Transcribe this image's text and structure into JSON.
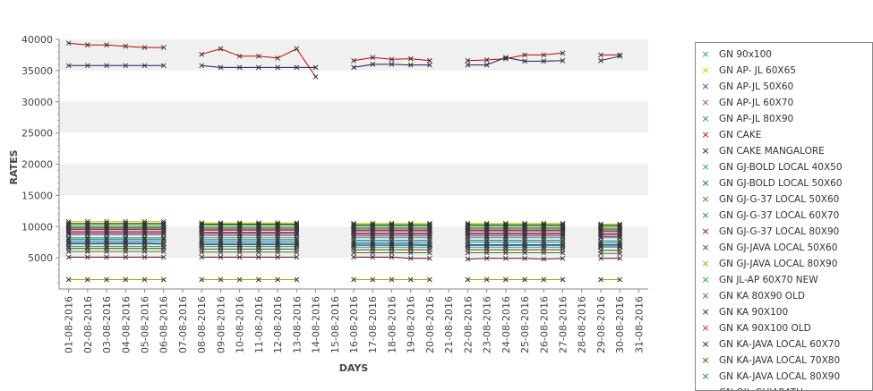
{
  "chart_data": {
    "type": "line",
    "title": "",
    "xlabel": "DAYS",
    "ylabel": "RATES",
    "ylim": [
      0,
      40000
    ],
    "y_ticks": [
      5000,
      10000,
      15000,
      20000,
      25000,
      30000,
      35000,
      40000
    ],
    "grid": "alternating horizontal bands",
    "legend_position": "right",
    "categories": [
      "01-08-2016",
      "02-08-2016",
      "03-08-2016",
      "04-08-2016",
      "05-08-2016",
      "06-08-2016",
      "07-08-2016",
      "08-08-2016",
      "09-08-2016",
      "10-08-2016",
      "11-08-2016",
      "12-08-2016",
      "13-08-2016",
      "14-08-2016",
      "15-08-2016",
      "16-08-2016",
      "17-08-2016",
      "18-08-2016",
      "19-08-2016",
      "20-08-2016",
      "21-08-2016",
      "22-08-2016",
      "23-08-2016",
      "24-08-2016",
      "25-08-2016",
      "26-08-2016",
      "27-08-2016",
      "28-08-2016",
      "29-08-2016",
      "30-08-2016",
      "31-08-2016"
    ],
    "series": [
      {
        "name": "GN 90x100",
        "color": "#2a9d8f",
        "values": [
          8200,
          8200,
          8200,
          8200,
          8200,
          8200,
          null,
          8200,
          8200,
          8200,
          8200,
          8200,
          8200,
          null,
          null,
          8200,
          8200,
          8200,
          8200,
          8200,
          null,
          8200,
          8200,
          8200,
          8200,
          8200,
          8200,
          null,
          8200,
          8200,
          null
        ]
      },
      {
        "name": "GN AP- JL 60X65",
        "color": "#c9c900",
        "values": [
          10800,
          10800,
          10800,
          10800,
          10800,
          10800,
          null,
          10600,
          10600,
          10600,
          10600,
          10600,
          10600,
          null,
          null,
          10500,
          10500,
          10500,
          10500,
          10500,
          null,
          10500,
          10500,
          10500,
          10500,
          10500,
          10500,
          null,
          10400,
          10400,
          null
        ]
      },
      {
        "name": "GN AP-JL 50X60",
        "color": "#1f4fa0",
        "values": [
          7400,
          7400,
          7400,
          7400,
          7400,
          7300,
          null,
          7300,
          7300,
          7300,
          7300,
          7300,
          7300,
          null,
          null,
          7200,
          7200,
          7200,
          7200,
          7100,
          null,
          7100,
          7100,
          7100,
          7100,
          7100,
          7100,
          null,
          7100,
          7100,
          null
        ]
      },
      {
        "name": "GN AP-JL 60X70",
        "color": "#a0522d",
        "values": [
          9500,
          9500,
          9500,
          9500,
          9500,
          9500,
          null,
          9400,
          9400,
          9400,
          9400,
          9400,
          9400,
          null,
          null,
          9300,
          9300,
          9300,
          9300,
          9300,
          null,
          9300,
          9300,
          9300,
          9300,
          9300,
          9300,
          null,
          9200,
          9200,
          null
        ]
      },
      {
        "name": "GN AP-JL 80X90",
        "color": "#1f77b4",
        "values": [
          7700,
          7700,
          7700,
          7700,
          7700,
          7700,
          null,
          7600,
          7600,
          7600,
          7600,
          7600,
          7600,
          null,
          null,
          7500,
          7500,
          7500,
          7500,
          7500,
          null,
          7500,
          7500,
          7500,
          7500,
          7500,
          7500,
          null,
          7400,
          7400,
          null
        ]
      },
      {
        "name": "GN CAKE",
        "color": "#cc0000",
        "values": [
          39400,
          39100,
          39100,
          38900,
          38700,
          38700,
          null,
          37600,
          38500,
          37300,
          37300,
          37000,
          38500,
          34000,
          null,
          36600,
          37100,
          36800,
          36900,
          36600,
          null,
          36600,
          36700,
          36900,
          37500,
          37500,
          37800,
          null,
          37500,
          37500,
          null
        ]
      },
      {
        "name": "GN CAKE MANGALORE",
        "color": "#1a1a5e",
        "values": [
          35800,
          35800,
          35800,
          35800,
          35800,
          35800,
          null,
          35800,
          35500,
          35500,
          35500,
          35500,
          35500,
          35500,
          null,
          35500,
          36000,
          36000,
          35900,
          35900,
          null,
          35900,
          35900,
          37100,
          36500,
          36500,
          36600,
          null,
          36600,
          37300,
          null
        ]
      },
      {
        "name": "GN GJ-BOLD LOCAL 40X50",
        "color": "#2a9d8f",
        "values": [
          6800,
          6800,
          6800,
          6800,
          6800,
          6800,
          null,
          6800,
          6800,
          6800,
          6800,
          6800,
          6800,
          null,
          null,
          6700,
          6700,
          6700,
          6700,
          6700,
          null,
          6700,
          6700,
          6700,
          6700,
          6700,
          6700,
          null,
          6700,
          6700,
          null
        ]
      },
      {
        "name": "GN GJ-BOLD LOCAL 50X60",
        "color": "#0b6e4f",
        "values": [
          7200,
          7200,
          7200,
          7200,
          7200,
          7200,
          null,
          7100,
          7100,
          7100,
          7100,
          7100,
          7100,
          null,
          null,
          7000,
          7000,
          7000,
          7000,
          7000,
          null,
          7000,
          7000,
          7000,
          7000,
          7000,
          7000,
          null,
          6900,
          6900,
          null
        ]
      },
      {
        "name": "GN GJ-G-37 LOCAL 50X60",
        "color": "#4a7d1e",
        "values": [
          9800,
          9800,
          9800,
          9800,
          9800,
          9800,
          null,
          9700,
          9700,
          9700,
          9700,
          9700,
          9700,
          null,
          null,
          9600,
          9600,
          9600,
          9600,
          9600,
          null,
          9600,
          9600,
          9600,
          9600,
          9600,
          9600,
          null,
          9500,
          9500,
          null
        ]
      },
      {
        "name": "GN GJ-G-37 LOCAL 60X70",
        "color": "#1b8a5a",
        "values": [
          10000,
          10000,
          10000,
          10000,
          10000,
          10000,
          null,
          9900,
          9900,
          9900,
          9900,
          9900,
          9900,
          null,
          null,
          9800,
          9800,
          9800,
          9800,
          9800,
          null,
          9800,
          9800,
          9800,
          9800,
          9800,
          9800,
          null,
          9700,
          9700,
          null
        ]
      },
      {
        "name": "GN GJ-G-37 LOCAL 80X90",
        "color": "#7a1010",
        "values": [
          9000,
          9000,
          9000,
          9000,
          9000,
          9000,
          null,
          8900,
          8900,
          8900,
          8900,
          8900,
          8900,
          null,
          null,
          8800,
          8800,
          8800,
          8800,
          8800,
          null,
          8800,
          8800,
          8800,
          8800,
          8800,
          8800,
          null,
          8700,
          8700,
          null
        ]
      },
      {
        "name": "GN GJ-JAVA LOCAL 50X60",
        "color": "#6b2d5c",
        "values": [
          8700,
          8700,
          8700,
          8700,
          8700,
          8700,
          null,
          8600,
          8600,
          8600,
          8600,
          8600,
          8600,
          null,
          null,
          8500,
          8500,
          8500,
          8500,
          8500,
          null,
          8500,
          8500,
          8500,
          8500,
          8500,
          8500,
          null,
          8400,
          8400,
          null
        ]
      },
      {
        "name": "GN GJ-JAVA LOCAL 80X90",
        "color": "#b8a000",
        "values": [
          1500,
          1500,
          1500,
          1500,
          1500,
          1500,
          null,
          1500,
          1500,
          1500,
          1500,
          1500,
          1500,
          null,
          null,
          1500,
          1500,
          1500,
          1500,
          1500,
          null,
          1500,
          1500,
          1500,
          1500,
          1500,
          1500,
          null,
          1500,
          1500,
          null
        ]
      },
      {
        "name": "GN JL-AP 60X70 NEW",
        "color": "#22aa22",
        "values": [
          10300,
          10300,
          10300,
          10300,
          10300,
          10300,
          null,
          10200,
          10200,
          10200,
          10200,
          10200,
          10200,
          null,
          null,
          10100,
          10100,
          10100,
          10100,
          10100,
          null,
          10100,
          10100,
          10100,
          10100,
          10100,
          10100,
          null,
          10000,
          10000,
          null
        ]
      },
      {
        "name": "GN KA 80X90 OLD",
        "color": "#7b3fb0",
        "values": [
          9200,
          9200,
          9200,
          9200,
          9200,
          9200,
          null,
          9100,
          9100,
          9100,
          9100,
          9100,
          9100,
          null,
          null,
          9000,
          9000,
          9000,
          9000,
          9000,
          null,
          9000,
          9000,
          9000,
          9000,
          9000,
          9000,
          null,
          8900,
          8900,
          null
        ]
      },
      {
        "name": "GN KA 90X100",
        "color": "#3d2b00",
        "values": [
          10500,
          10500,
          10500,
          10500,
          10500,
          10500,
          null,
          10400,
          10400,
          10400,
          10400,
          10400,
          10400,
          null,
          null,
          10300,
          10300,
          10300,
          10300,
          10300,
          null,
          10300,
          10300,
          10300,
          10300,
          10300,
          10300,
          null,
          10200,
          10200,
          null
        ]
      },
      {
        "name": "GN KA 90X100 OLD",
        "color": "#c2185b",
        "values": [
          9600,
          9600,
          9600,
          9600,
          9600,
          9600,
          null,
          9500,
          9500,
          9500,
          9500,
          9500,
          9500,
          null,
          null,
          9400,
          9400,
          9400,
          9400,
          9400,
          null,
          9400,
          9400,
          9400,
          9400,
          9400,
          9400,
          null,
          9300,
          9300,
          null
        ]
      },
      {
        "name": "GN KA-JAVA LOCAL 60X70",
        "color": "#5c0a0a",
        "values": [
          5100,
          5100,
          5100,
          5100,
          5100,
          5100,
          null,
          5100,
          5100,
          5100,
          5100,
          5100,
          5100,
          null,
          null,
          5100,
          5100,
          5100,
          4900,
          4900,
          null,
          4800,
          4900,
          4900,
          4900,
          4800,
          4900,
          null,
          4900,
          4900,
          null
        ]
      },
      {
        "name": "GN KA-JAVA LOCAL 70X80",
        "color": "#4d4d00",
        "values": [
          6500,
          6500,
          6500,
          6500,
          6500,
          6500,
          null,
          6400,
          6400,
          6400,
          6400,
          6400,
          6400,
          null,
          null,
          6300,
          6300,
          6300,
          6300,
          6300,
          null,
          6300,
          6300,
          6300,
          6300,
          6300,
          6300,
          null,
          6200,
          6200,
          null
        ]
      },
      {
        "name": "GN KA-JAVA LOCAL 80X90",
        "color": "#117a65",
        "values": [
          8000,
          8000,
          8000,
          8000,
          8000,
          8000,
          null,
          7900,
          7900,
          7900,
          7900,
          7900,
          7900,
          null,
          null,
          7800,
          7800,
          7800,
          7800,
          7800,
          null,
          7800,
          7800,
          7800,
          7800,
          7800,
          7800,
          null,
          7700,
          7700,
          null
        ]
      },
      {
        "name": "GN OIL-GUJARATH",
        "color": "#556b2f",
        "values": [
          6000,
          6000,
          6000,
          6000,
          6000,
          6000,
          null,
          5900,
          5900,
          5900,
          5900,
          5900,
          5900,
          null,
          null,
          5800,
          5800,
          5800,
          5800,
          5800,
          null,
          5800,
          5800,
          5800,
          5800,
          5800,
          5800,
          null,
          5700,
          5700,
          null
        ]
      }
    ]
  }
}
